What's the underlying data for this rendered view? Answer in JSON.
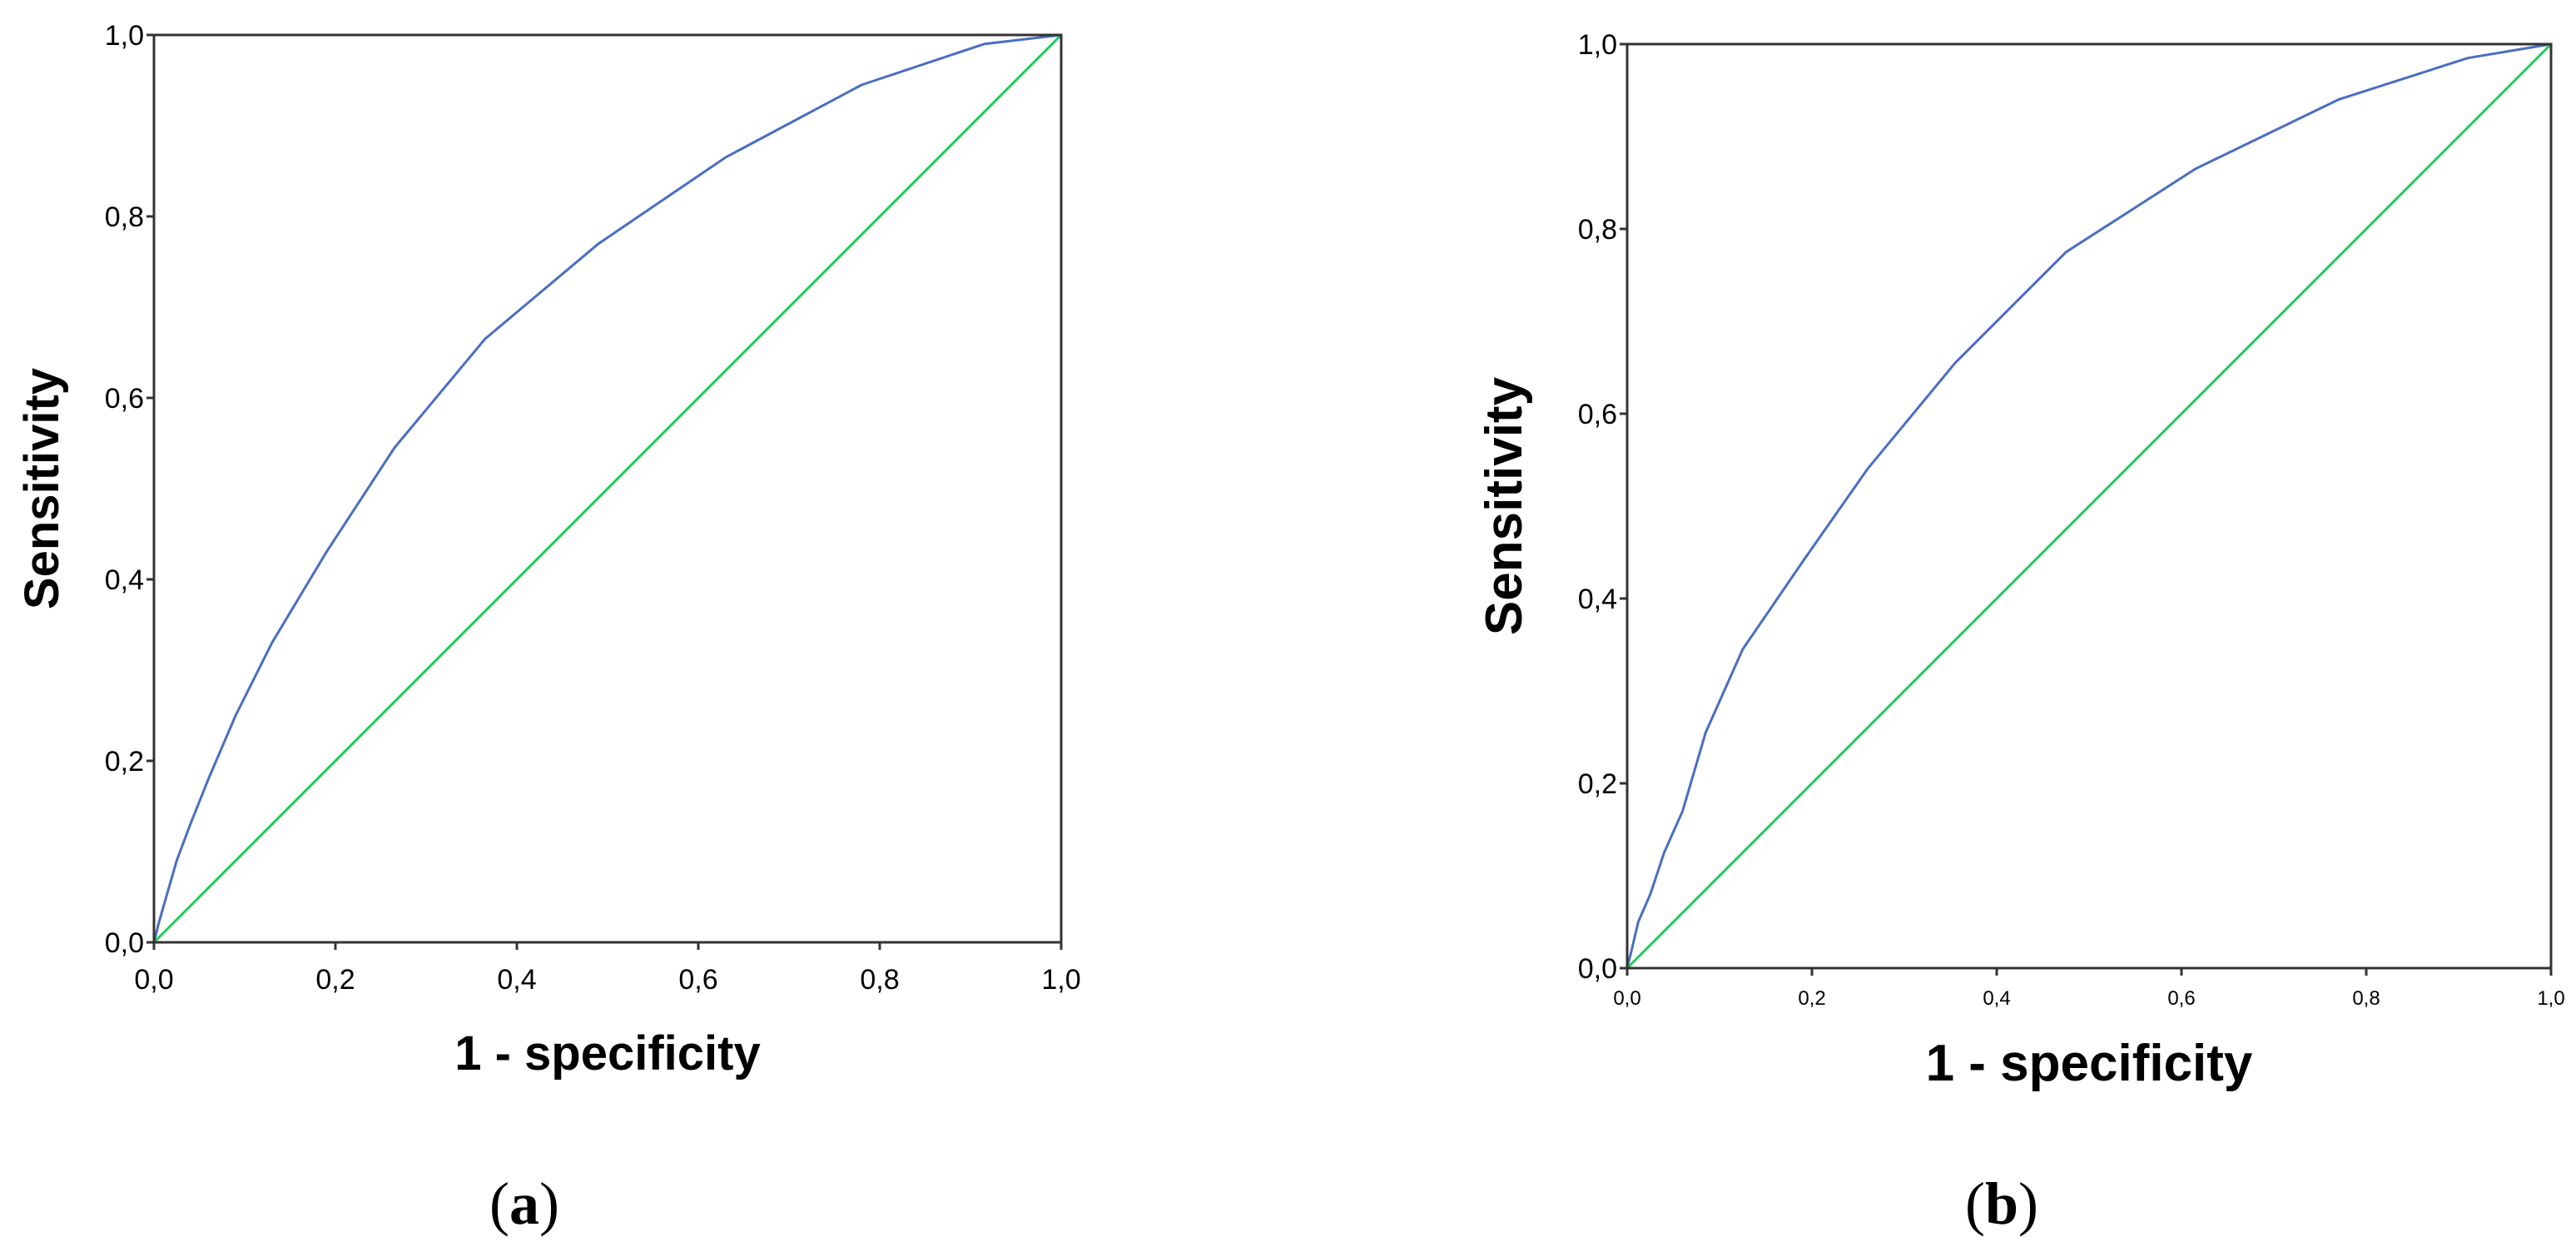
{
  "chart_data": [
    {
      "type": "line",
      "panel_label": "a",
      "xlabel": "1 - specificity",
      "ylabel": "Sensitivity",
      "xlim": [
        0,
        1
      ],
      "ylim": [
        0,
        1
      ],
      "xticks": [
        "0,0",
        "0,2",
        "0,4",
        "0,6",
        "0,8",
        "1,0"
      ],
      "yticks": [
        "0,0",
        "0,2",
        "0,4",
        "0,6",
        "0,8",
        "1,0"
      ],
      "grid": false,
      "colors": {
        "curve": "#4A6EC0",
        "reference": "#1FCB5C",
        "frame": "#333333"
      },
      "series": [
        {
          "x": [
            0,
            0.005,
            0.012,
            0.025,
            0.04,
            0.06,
            0.09,
            0.13,
            0.19,
            0.265,
            0.365,
            0.49,
            0.63,
            0.78,
            0.915,
            1.0
          ],
          "y": [
            0,
            0.02,
            0.045,
            0.09,
            0.13,
            0.18,
            0.25,
            0.33,
            0.43,
            0.545,
            0.665,
            0.77,
            0.865,
            0.945,
            0.99,
            1.0
          ]
        },
        {
          "x": [
            0,
            1
          ],
          "y": [
            0,
            1
          ]
        }
      ]
    },
    {
      "type": "line",
      "panel_label": "b",
      "xlabel": "1 - specificity",
      "ylabel": "Sensitivity",
      "xlim": [
        0,
        1
      ],
      "ylim": [
        0,
        1
      ],
      "xticks": [
        "0,0",
        "0,2",
        "0,4",
        "0,6",
        "0,8",
        "1,0"
      ],
      "yticks": [
        "0,0",
        "0,2",
        "0,4",
        "0,6",
        "0,8",
        "1,0"
      ],
      "grid": false,
      "colors": {
        "curve": "#4A6EC0",
        "reference": "#1FCB5C",
        "frame": "#333333"
      },
      "series": [
        {
          "x": [
            0,
            0.005,
            0.012,
            0.025,
            0.04,
            0.06,
            0.085,
            0.125,
            0.19,
            0.26,
            0.355,
            0.475,
            0.615,
            0.77,
            0.91,
            1.0
          ],
          "y": [
            0,
            0.02,
            0.05,
            0.08,
            0.125,
            0.17,
            0.255,
            0.345,
            0.44,
            0.54,
            0.655,
            0.775,
            0.865,
            0.94,
            0.985,
            1.0
          ]
        },
        {
          "x": [
            0,
            1
          ],
          "y": [
            0,
            1
          ]
        }
      ]
    }
  ]
}
